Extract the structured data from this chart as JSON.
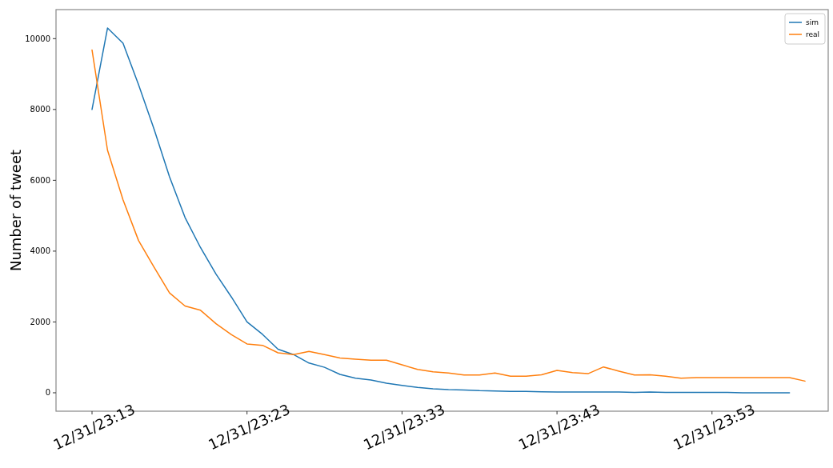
{
  "chart_data": {
    "type": "line",
    "ylabel": "Number of tweet",
    "categories": [
      "12/31/23:13",
      null,
      null,
      null,
      null,
      null,
      null,
      null,
      null,
      null,
      "12/31/23:23",
      null,
      null,
      null,
      null,
      null,
      null,
      null,
      null,
      null,
      "12/31/23:33",
      null,
      null,
      null,
      null,
      null,
      null,
      null,
      null,
      null,
      "12/31/23:43",
      null,
      null,
      null,
      null,
      null,
      null,
      null,
      null,
      null,
      "12/31/23:53",
      null,
      null,
      null,
      null,
      null,
      null
    ],
    "ylim": [
      -520,
      10820
    ],
    "yticks": [
      0,
      2000,
      4000,
      6000,
      8000,
      10000
    ],
    "legend": "top right",
    "grid": false,
    "marker": "none",
    "line_style": "solid",
    "series": [
      {
        "name": "sim",
        "color": "#1f77b4",
        "values": [
          8000,
          10300,
          9870,
          8700,
          7450,
          6100,
          4950,
          4100,
          3350,
          2700,
          2000,
          1650,
          1230,
          1080,
          840,
          720,
          520,
          410,
          360,
          270,
          210,
          150,
          110,
          90,
          80,
          60,
          50,
          40,
          40,
          30,
          20,
          20,
          20,
          20,
          20,
          10,
          20,
          10,
          10,
          10,
          10,
          10,
          0,
          0,
          0,
          0,
          null
        ]
      },
      {
        "name": "real",
        "color": "#ff7f0e",
        "values": [
          9680,
          6850,
          5450,
          4300,
          3550,
          2820,
          2450,
          2330,
          1950,
          1640,
          1380,
          1340,
          1130,
          1080,
          1170,
          1080,
          980,
          950,
          920,
          920,
          790,
          660,
          590,
          560,
          500,
          500,
          560,
          470,
          470,
          510,
          630,
          570,
          540,
          730,
          610,
          500,
          510,
          470,
          410,
          430,
          430,
          430,
          430,
          430,
          430,
          430,
          330
        ]
      }
    ]
  }
}
